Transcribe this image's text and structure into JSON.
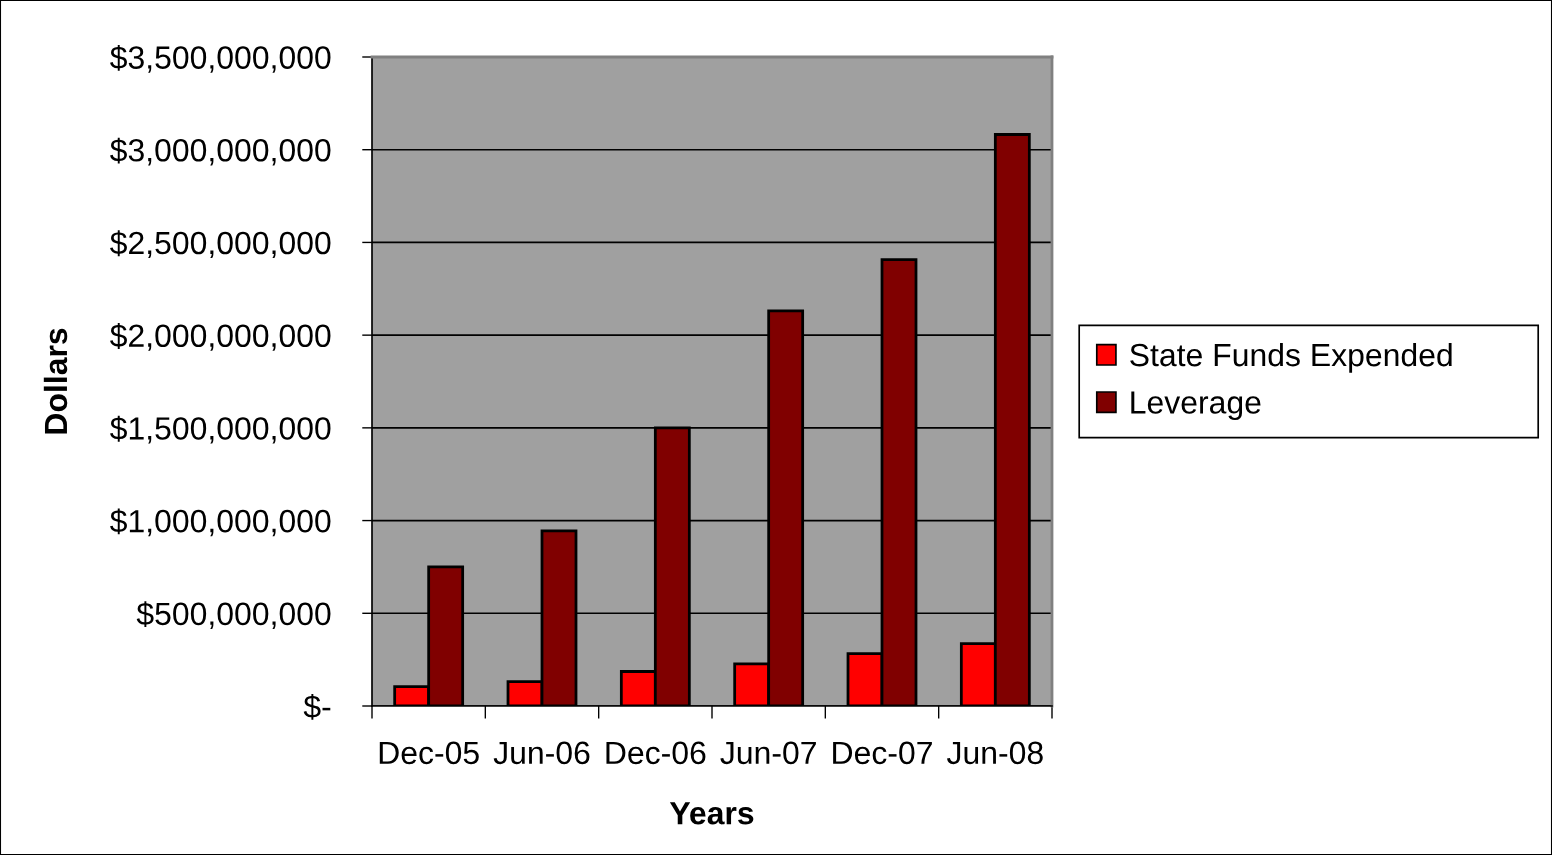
{
  "chart_data": {
    "type": "bar",
    "xlabel": "Years",
    "ylabel": "Dollars",
    "categories": [
      "Dec-05",
      "Jun-06",
      "Dec-06",
      "Jun-07",
      "Dec-07",
      "Jun-08"
    ],
    "series": [
      {
        "name": "State Funds Expended",
        "color": "#ff0000",
        "values": [
          105000000,
          132000000,
          186000000,
          227000000,
          283000000,
          336000000
        ]
      },
      {
        "name": "Leverage",
        "color": "#800000",
        "values": [
          750000000,
          945000000,
          1500000000,
          2131000000,
          2407000000,
          3082000000
        ]
      }
    ],
    "ylim": [
      0,
      3500000000
    ],
    "yticks": [
      {
        "value": 0,
        "label": "$-"
      },
      {
        "value": 500000000,
        "label": "$500,000,000"
      },
      {
        "value": 1000000000,
        "label": "$1,000,000,000"
      },
      {
        "value": 1500000000,
        "label": "$1,500,000,000"
      },
      {
        "value": 2000000000,
        "label": "$2,000,000,000"
      },
      {
        "value": 2500000000,
        "label": "$2,500,000,000"
      },
      {
        "value": 3000000000,
        "label": "$3,000,000,000"
      },
      {
        "value": 3500000000,
        "label": "$3,500,000,000"
      }
    ],
    "grid": "y",
    "legend": "right"
  }
}
